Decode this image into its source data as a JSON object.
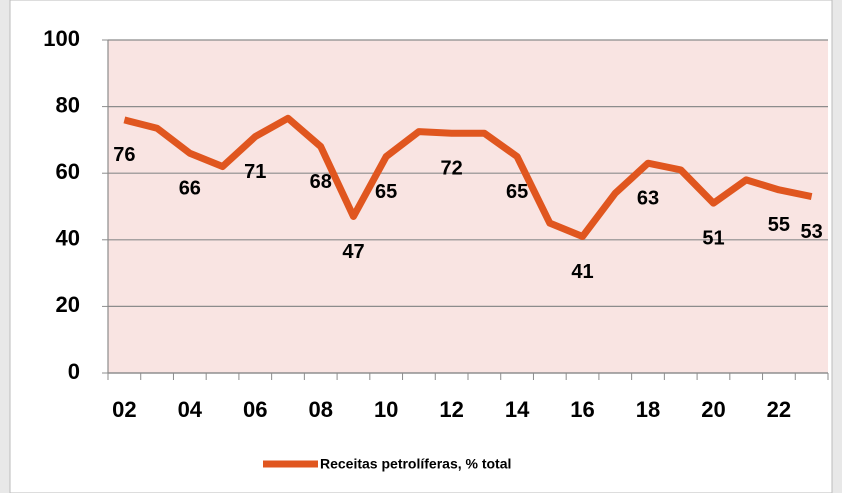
{
  "chart_data": {
    "type": "line",
    "categories": [
      "02",
      null,
      "04",
      null,
      "06",
      null,
      "08",
      null,
      "10",
      null,
      "12",
      null,
      "14",
      null,
      "16",
      null,
      "18",
      null,
      "20",
      null,
      "22",
      null
    ],
    "series": [
      {
        "name": "Receitas petrolíferas, % total",
        "color": "#e0561f",
        "values": [
          76,
          73.5,
          66,
          62,
          71,
          76.5,
          68,
          47,
          65,
          72.5,
          72,
          72,
          65,
          45,
          41,
          54,
          63,
          61,
          51,
          58,
          55,
          53
        ],
        "value_labels": [
          "76",
          null,
          "66",
          null,
          "71",
          null,
          "68",
          "47",
          "65",
          null,
          "72",
          null,
          "65",
          null,
          "41",
          null,
          "63",
          null,
          "51",
          null,
          "55",
          "53"
        ]
      }
    ],
    "ylim": [
      0,
      100
    ],
    "yticks": [
      0,
      20,
      40,
      60,
      80,
      100
    ],
    "grid": true,
    "legend": "bottom"
  }
}
